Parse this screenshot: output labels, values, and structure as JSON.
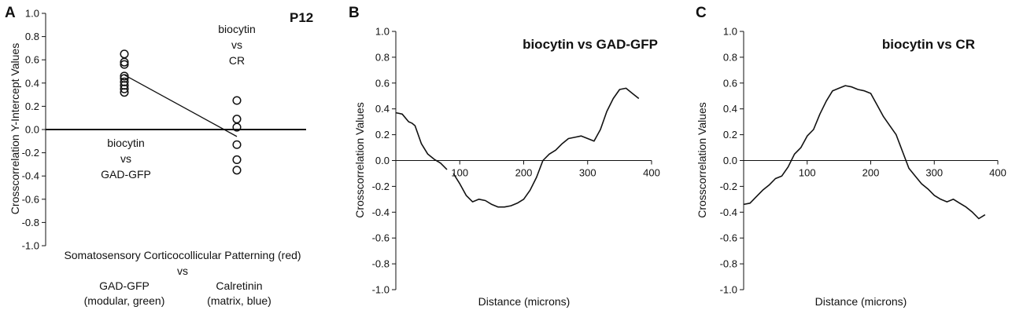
{
  "chart_data": [
    {
      "panel_label": "A",
      "type": "scatter",
      "title": "P12",
      "ylabel": "Crosscorrelation Y-Intercept Values",
      "ylim": [
        -1.0,
        1.0
      ],
      "yticks": [
        "1.0",
        "0.8",
        "0.6",
        "0.4",
        "0.2",
        "0.0",
        "-0.2",
        "-0.4",
        "-0.6",
        "-0.8",
        "-1.0"
      ],
      "groups": [
        {
          "name": "biocytin vs GAD-GFP",
          "annotation": [
            "biocytin",
            "vs",
            "GAD-GFP"
          ],
          "values": [
            0.65,
            0.58,
            0.56,
            0.46,
            0.44,
            0.41,
            0.38,
            0.35,
            0.32
          ]
        },
        {
          "name": "biocytin vs CR",
          "annotation": [
            "biocytin",
            "vs",
            "CR"
          ],
          "values": [
            0.25,
            0.09,
            0.02,
            -0.13,
            -0.26,
            -0.35
          ]
        }
      ],
      "mean_line": [
        0.47,
        -0.06
      ],
      "xaxis_title": "Somatosensory Corticocollicular Patterning (red)",
      "xaxis_vs": "vs",
      "xcategories": [
        {
          "line1": "GAD-GFP",
          "line2": "(modular, green)"
        },
        {
          "line1": "Calretinin",
          "line2": "(matrix, blue)"
        }
      ]
    },
    {
      "panel_label": "B",
      "type": "line",
      "title": "biocytin vs GAD-GFP",
      "xlabel": "Distance (microns)",
      "ylabel": "Crosscorrelation Values",
      "xlim": [
        0,
        400
      ],
      "ylim": [
        -1.0,
        1.0
      ],
      "xticks": [
        "100",
        "200",
        "300",
        "400"
      ],
      "yticks": [
        "1.0",
        "0.8",
        "0.6",
        "0.4",
        "0.2",
        "0.0",
        "-0.2",
        "-0.4",
        "-0.6",
        "-0.8",
        "-1.0"
      ],
      "segments": [
        {
          "x": [
            0,
            10,
            20,
            25,
            30,
            40,
            50,
            60,
            70,
            80
          ],
          "y": [
            0.37,
            0.36,
            0.3,
            0.29,
            0.27,
            0.13,
            0.05,
            0.01,
            -0.02,
            -0.07
          ]
        },
        {
          "x": [
            90,
            100,
            110,
            120,
            130,
            140,
            150,
            160,
            170,
            180,
            190,
            200,
            210,
            220,
            230,
            240,
            250,
            260,
            270,
            280,
            290,
            300,
            310,
            320,
            330,
            340,
            350,
            360,
            370,
            380
          ],
          "y": [
            -0.1,
            -0.18,
            -0.27,
            -0.32,
            -0.3,
            -0.31,
            -0.34,
            -0.36,
            -0.36,
            -0.35,
            -0.33,
            -0.3,
            -0.23,
            -0.13,
            0.0,
            0.05,
            0.08,
            0.13,
            0.17,
            0.18,
            0.19,
            0.17,
            0.15,
            0.24,
            0.38,
            0.48,
            0.55,
            0.56,
            0.52,
            0.48
          ]
        }
      ]
    },
    {
      "panel_label": "C",
      "type": "line",
      "title": "biocytin vs CR",
      "xlabel": "Distance (microns)",
      "ylabel": "Crosscorrelation Values",
      "xlim": [
        0,
        400
      ],
      "ylim": [
        -1.0,
        1.0
      ],
      "xticks": [
        "100",
        "200",
        "300",
        "400"
      ],
      "yticks": [
        "1.0",
        "0.8",
        "0.6",
        "0.4",
        "0.2",
        "0.0",
        "-0.2",
        "-0.4",
        "-0.6",
        "-0.8",
        "-1.0"
      ],
      "segments": [
        {
          "x": [
            0,
            10,
            20,
            30,
            40,
            50,
            60,
            70,
            80,
            90,
            100,
            110,
            120,
            130,
            140,
            150,
            160,
            170,
            180,
            190,
            200,
            210,
            220,
            230,
            240,
            250,
            260,
            270,
            280,
            290,
            300,
            310,
            320,
            330,
            340,
            350,
            360,
            370,
            380
          ],
          "y": [
            -0.34,
            -0.33,
            -0.28,
            -0.23,
            -0.19,
            -0.14,
            -0.12,
            -0.05,
            0.05,
            0.1,
            0.19,
            0.24,
            0.36,
            0.46,
            0.54,
            0.56,
            0.58,
            0.57,
            0.55,
            0.54,
            0.52,
            0.43,
            0.34,
            0.27,
            0.2,
            0.07,
            -0.06,
            -0.12,
            -0.18,
            -0.22,
            -0.27,
            -0.3,
            -0.32,
            -0.3,
            -0.33,
            -0.36,
            -0.4,
            -0.45,
            -0.42
          ]
        }
      ]
    }
  ]
}
